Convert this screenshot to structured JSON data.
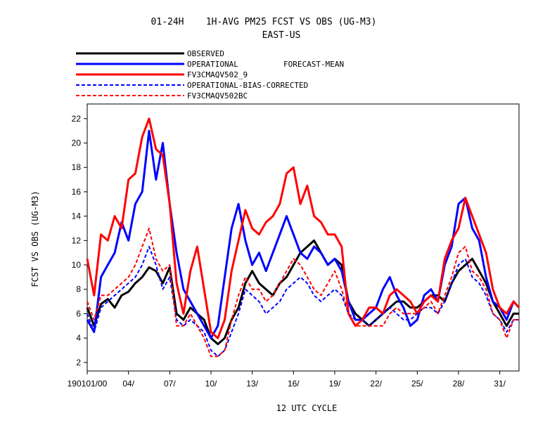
{
  "chart_data": {
    "type": "line",
    "title_line1": "01-24H    1H-AVG PM25 FCST VS OBS (UG-M3)",
    "title_line2": "EAST-US",
    "legend_note": "FORECAST-MEAN",
    "xlabel": "12 UTC CYCLE",
    "ylabel": "FCST VS OBS (UG-M3)",
    "xlim": [
      0,
      31.4
    ],
    "ylim": [
      1.3,
      23.2
    ],
    "y_ticks": [
      2,
      4,
      6,
      8,
      10,
      12,
      14,
      16,
      18,
      20,
      22
    ],
    "x_ticks": [
      {
        "x": 0,
        "label": "190101/00"
      },
      {
        "x": 3,
        "label": "04/"
      },
      {
        "x": 6,
        "label": "07/"
      },
      {
        "x": 9,
        "label": "10/"
      },
      {
        "x": 12,
        "label": "13/"
      },
      {
        "x": 15,
        "label": "16/"
      },
      {
        "x": 18,
        "label": "19/"
      },
      {
        "x": 21,
        "label": "22/"
      },
      {
        "x": 24,
        "label": "25/"
      },
      {
        "x": 27,
        "label": "28/"
      },
      {
        "x": 30,
        "label": "31/"
      }
    ],
    "x": [
      0,
      0.5,
      1,
      1.5,
      2,
      2.5,
      3,
      3.5,
      4,
      4.5,
      5,
      5.5,
      6,
      6.5,
      7,
      7.5,
      8,
      8.5,
      9,
      9.5,
      10,
      10.5,
      11,
      11.5,
      12,
      12.5,
      13,
      13.5,
      14,
      14.5,
      15,
      15.5,
      16,
      16.5,
      17,
      17.5,
      18,
      18.5,
      19,
      19.5,
      20,
      20.5,
      21,
      21.5,
      22,
      22.5,
      23,
      23.5,
      24,
      24.5,
      25,
      25.5,
      26,
      26.5,
      27,
      27.5,
      28,
      28.5,
      29,
      29.5,
      30,
      30.5,
      31,
      31.4
    ],
    "series": [
      {
        "name": "OBSERVED",
        "color": "#000000",
        "width": 3,
        "dash": "",
        "values": [
          6.5,
          5.0,
          6.8,
          7.2,
          6.5,
          7.5,
          7.8,
          8.5,
          9.0,
          9.8,
          9.5,
          8.5,
          9.8,
          6.0,
          5.5,
          6.5,
          6.0,
          5.5,
          4.0,
          3.5,
          4.0,
          5.5,
          6.5,
          8.5,
          9.5,
          8.5,
          8.0,
          7.5,
          8.5,
          9.0,
          10.0,
          11.0,
          11.5,
          12.0,
          11.0,
          10.0,
          10.5,
          10.0,
          7.0,
          6.0,
          5.5,
          5.0,
          5.5,
          6.0,
          6.5,
          7.0,
          7.0,
          6.5,
          6.5,
          7.0,
          7.5,
          7.5,
          7.0,
          8.5,
          9.5,
          10.0,
          10.5,
          9.5,
          8.5,
          7.0,
          6.0,
          5.0,
          6.0,
          6.0
        ]
      },
      {
        "name": "OPERATIONAL",
        "color": "#0000ff",
        "width": 3,
        "dash": "",
        "values": [
          5.5,
          4.5,
          9.0,
          10.0,
          11.0,
          13.5,
          12.0,
          15.0,
          16.0,
          21.0,
          17.0,
          20.0,
          15.0,
          11.0,
          8.0,
          7.0,
          6.0,
          5.0,
          4.0,
          5.0,
          9.0,
          13.0,
          15.0,
          12.0,
          10.0,
          11.0,
          9.5,
          11.0,
          12.5,
          14.0,
          12.5,
          11.0,
          10.5,
          11.5,
          11.0,
          10.0,
          10.5,
          9.5,
          7.0,
          5.5,
          5.5,
          6.0,
          6.5,
          8.0,
          9.0,
          7.5,
          6.5,
          5.0,
          5.5,
          7.5,
          8.0,
          7.0,
          10.0,
          11.5,
          15.0,
          15.5,
          13.0,
          12.0,
          9.0,
          7.0,
          6.5,
          5.5,
          7.0,
          6.5
        ]
      },
      {
        "name": "FV3CMAQV502_9",
        "color": "#ff0000",
        "width": 3,
        "dash": "",
        "values": [
          10.5,
          7.5,
          12.5,
          12.0,
          14.0,
          13.0,
          17.0,
          17.5,
          20.5,
          22.0,
          19.5,
          19.0,
          15.0,
          8.5,
          6.0,
          9.5,
          11.5,
          8.0,
          4.5,
          4.0,
          5.5,
          9.5,
          12.0,
          14.5,
          13.0,
          12.5,
          13.5,
          14.0,
          15.0,
          17.5,
          18.0,
          15.0,
          16.5,
          14.0,
          13.5,
          12.5,
          12.5,
          11.5,
          6.0,
          5.0,
          5.5,
          6.5,
          6.5,
          6.0,
          7.5,
          8.0,
          7.5,
          7.0,
          6.0,
          7.0,
          7.5,
          7.0,
          10.5,
          12.0,
          13.0,
          15.5,
          14.0,
          12.5,
          11.0,
          8.0,
          6.5,
          6.0,
          7.0,
          6.5
        ]
      },
      {
        "name": "OPERATIONAL-BIAS-CORRECTED",
        "color": "#0000ff",
        "width": 2,
        "dash": "5,3",
        "values": [
          6.0,
          4.5,
          6.5,
          7.0,
          7.5,
          8.0,
          8.5,
          9.0,
          10.0,
          11.5,
          10.0,
          8.0,
          9.0,
          5.5,
          5.0,
          5.5,
          5.0,
          4.5,
          3.0,
          2.5,
          3.0,
          4.5,
          6.0,
          8.0,
          7.5,
          7.0,
          6.0,
          6.5,
          7.0,
          8.0,
          8.5,
          9.0,
          8.5,
          7.5,
          7.0,
          7.5,
          8.0,
          7.5,
          6.0,
          5.5,
          5.5,
          5.0,
          5.5,
          6.0,
          6.5,
          6.0,
          5.5,
          5.5,
          6.0,
          6.5,
          6.5,
          6.0,
          7.0,
          8.5,
          10.0,
          10.5,
          9.0,
          8.5,
          7.5,
          6.0,
          5.5,
          4.5,
          5.5,
          5.5
        ]
      },
      {
        "name": "FV3CMAQV502BC",
        "color": "#ff0000",
        "width": 2,
        "dash": "5,3",
        "values": [
          7.0,
          5.5,
          7.5,
          7.5,
          8.0,
          8.5,
          9.0,
          10.0,
          11.5,
          13.0,
          10.5,
          9.5,
          10.0,
          5.0,
          5.0,
          6.0,
          5.0,
          4.0,
          2.5,
          2.5,
          3.0,
          5.5,
          7.5,
          9.0,
          8.0,
          8.0,
          7.0,
          7.5,
          8.5,
          9.5,
          10.5,
          10.0,
          9.0,
          8.0,
          7.5,
          8.5,
          9.5,
          8.0,
          6.0,
          5.0,
          5.0,
          5.0,
          5.0,
          5.0,
          6.0,
          6.5,
          6.0,
          6.0,
          6.0,
          6.5,
          7.0,
          6.0,
          7.5,
          9.0,
          11.0,
          11.5,
          9.5,
          9.0,
          8.0,
          6.0,
          5.5,
          4.0,
          5.5,
          5.5
        ]
      }
    ]
  }
}
